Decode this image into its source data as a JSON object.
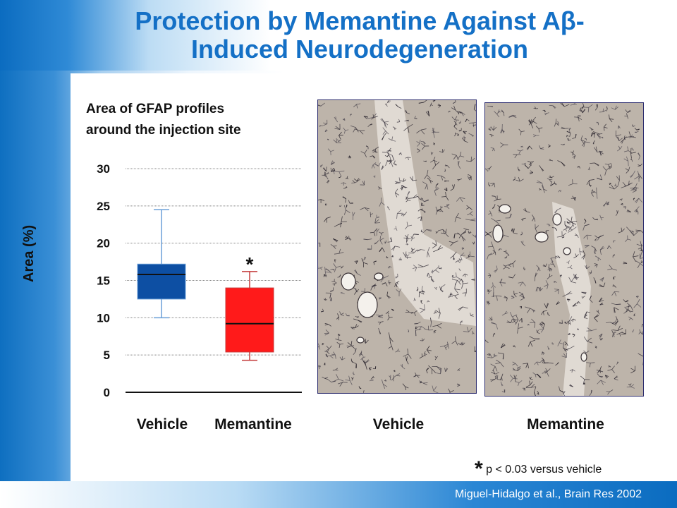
{
  "slide": {
    "title_line1": "Protection by Memantine Against Aβ-",
    "title_line2": "Induced Neurodegeneration",
    "citation": "Miguel-Hidalgo et al., Brain Res 2002",
    "footnote_star": "*",
    "footnote_text": " p < 0.03 versus vehicle"
  },
  "images": {
    "left_label": "Vehicle",
    "right_label": "Memantine"
  },
  "colors": {
    "title": "#1470c6",
    "vehicle_box": "#0d4fa3",
    "memantine_box": "#ff1a1a",
    "median_line": "#111111"
  },
  "chart_data": {
    "type": "box",
    "title_line1": "Area of GFAP profiles",
    "title_line2": "around the injection site",
    "ylabel": "Area (%)",
    "ylim": [
      0,
      30
    ],
    "yticks": [
      0,
      5,
      10,
      15,
      20,
      25,
      30
    ],
    "grid": true,
    "categories": [
      "Vehicle",
      "Memantine"
    ],
    "boxes": [
      {
        "category": "Vehicle",
        "whisker_low": 10,
        "q1": 12.5,
        "median": 15.8,
        "q3": 17.2,
        "whisker_high": 24.5,
        "color": "#0d4fa3",
        "annotation": ""
      },
      {
        "category": "Memantine",
        "whisker_low": 4.3,
        "q1": 5.4,
        "median": 9.2,
        "q3": 14,
        "whisker_high": 16.2,
        "color": "#ff1a1a",
        "annotation": "*"
      }
    ]
  }
}
